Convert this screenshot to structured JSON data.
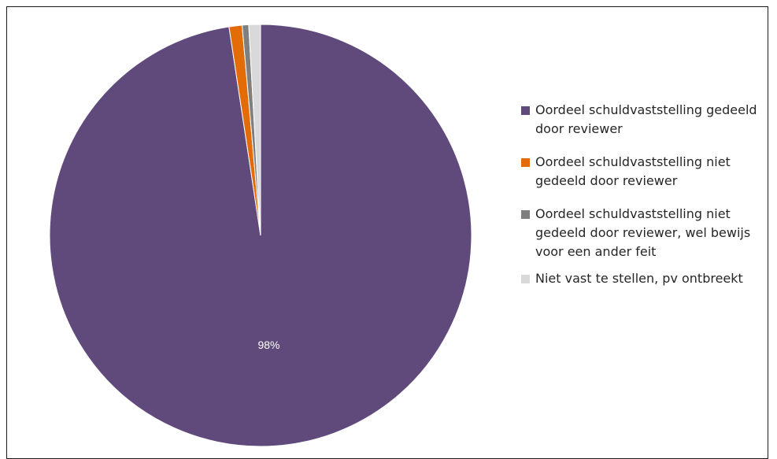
{
  "chart_data": {
    "type": "pie",
    "title": "",
    "legend_position": "right",
    "slices": [
      {
        "name": "Oordeel schuldvaststelling gedeeld door reviewer",
        "value": 98,
        "label": "98%",
        "color": "#604a7b"
      },
      {
        "name": "Oordeel schuldvaststelling niet gedeeld door reviewer",
        "value": 1,
        "label": "",
        "color": "#e36c09"
      },
      {
        "name": "Oordeel schuldvaststelling niet gedeeld door reviewer, wel bewijs voor een ander feit",
        "value": 0.5,
        "label": "",
        "color": "#7f7f7f"
      },
      {
        "name": "Niet vast te stellen, pv ontbreekt",
        "value": 0.9,
        "label": "",
        "color": "#d9d9d9"
      }
    ]
  },
  "legend": {
    "items": [
      "Oordeel schuldvaststelling gedeeld door reviewer",
      "Oordeel schuldvaststelling niet gedeeld door reviewer",
      "Oordeel schuldvaststelling niet gedeeld door reviewer, wel bewijs voor een ander feit",
      "Niet vast te stellen, pv ontbreekt"
    ]
  }
}
